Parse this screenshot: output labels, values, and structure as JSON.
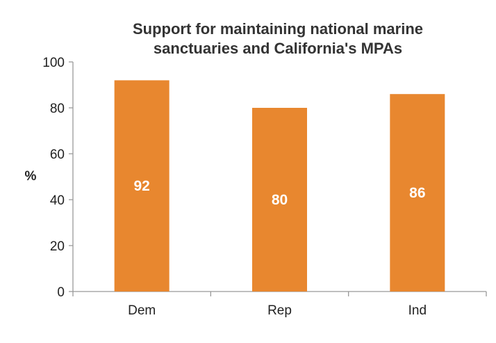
{
  "chart_data": {
    "type": "bar",
    "title_lines": [
      "Support for maintaining national marine",
      "sanctuaries and California's MPAs"
    ],
    "ylabel": "%",
    "xlabel": "",
    "categories": [
      "Dem",
      "Rep",
      "Ind"
    ],
    "values": [
      92,
      80,
      86
    ],
    "data_labels": [
      "92",
      "80",
      "86"
    ],
    "ylim": [
      0,
      100
    ],
    "yticks": [
      0,
      20,
      40,
      60,
      80,
      100
    ],
    "ytick_labels": [
      "0",
      "20",
      "40",
      "60",
      "80",
      "100"
    ],
    "grid": false,
    "legend": "none",
    "colors": {
      "bar": "#E8872F",
      "axis": "#999999",
      "text": "#222222",
      "title": "#333333",
      "data_label": "#ffffff"
    }
  }
}
